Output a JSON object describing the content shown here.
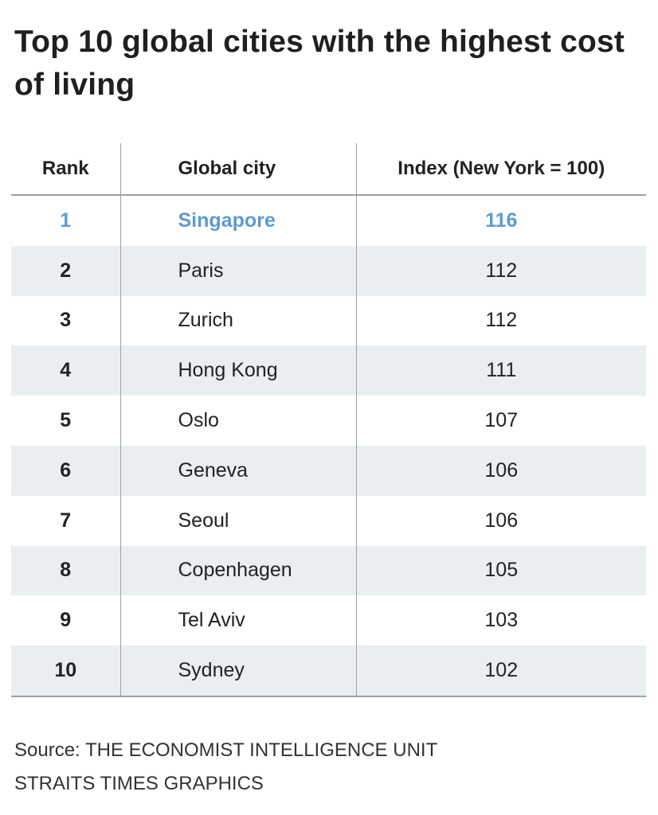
{
  "chart_data": {
    "type": "table",
    "title": "Top 10 global cities with the highest cost of living",
    "columns": [
      "Rank",
      "Global city",
      "Index (New York = 100)"
    ],
    "rows": [
      {
        "rank": "1",
        "city": "Singapore",
        "index": "116",
        "highlight": true
      },
      {
        "rank": "2",
        "city": "Paris",
        "index": "112"
      },
      {
        "rank": "3",
        "city": "Zurich",
        "index": "112"
      },
      {
        "rank": "4",
        "city": "Hong Kong",
        "index": "111"
      },
      {
        "rank": "5",
        "city": "Oslo",
        "index": "107"
      },
      {
        "rank": "6",
        "city": "Geneva",
        "index": "106"
      },
      {
        "rank": "7",
        "city": "Seoul",
        "index": "106"
      },
      {
        "rank": "8",
        "city": "Copenhagen",
        "index": "105"
      },
      {
        "rank": "9",
        "city": "Tel Aviv",
        "index": "103"
      },
      {
        "rank": "10",
        "city": "Sydney",
        "index": "102"
      }
    ],
    "highlight_color": "#5b9bd5",
    "stripe_color": "#e9eef0"
  },
  "footer": {
    "source": "Source: THE ECONOMIST INTELLIGENCE UNIT",
    "credit": "STRAITS TIMES GRAPHICS"
  }
}
